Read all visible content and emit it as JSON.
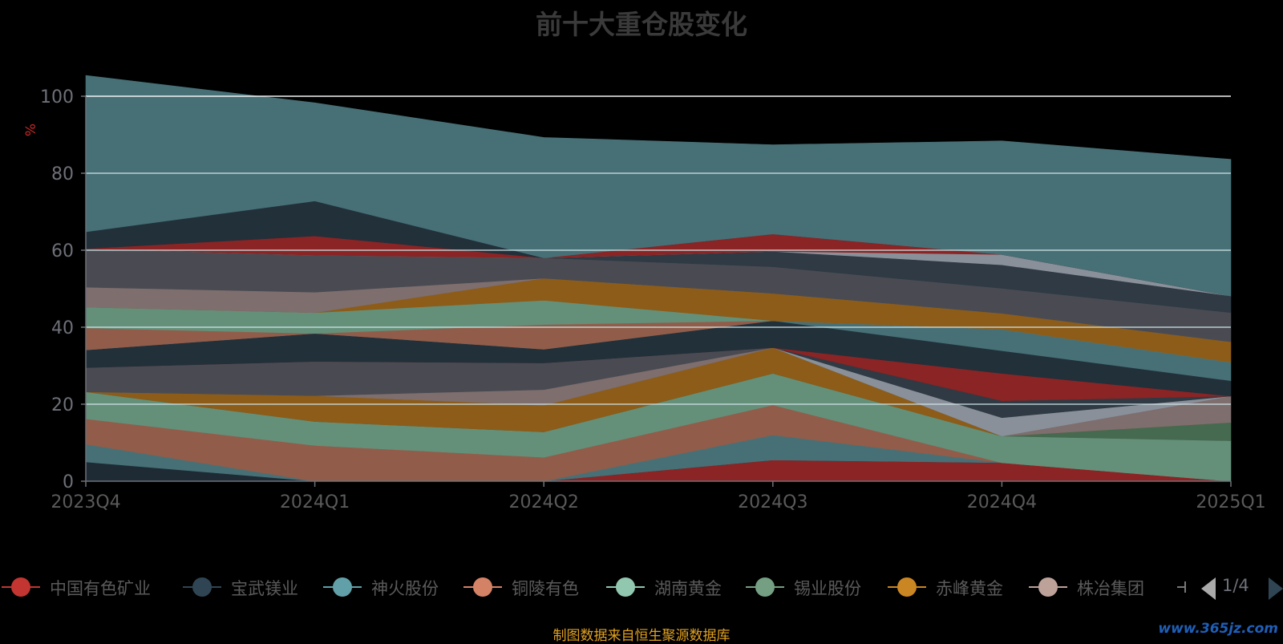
{
  "title": "前十大重仓股变化",
  "source_text": "制图数据来自恒生聚源数据库",
  "watermark": "www.365jz.com",
  "pager": {
    "label": "1/4"
  },
  "chart_data": {
    "type": "area",
    "stacked": true,
    "categories": [
      "2023Q4",
      "2024Q1",
      "2024Q2",
      "2024Q3",
      "2024Q4",
      "2025Q1"
    ],
    "ylabel": "%",
    "ylim": [
      0,
      100
    ],
    "yticks": [
      0,
      20,
      40,
      60,
      80,
      100
    ],
    "grid": true,
    "legend_position": "bottom",
    "series": [
      {
        "name": "中国有色矿业",
        "legend": true,
        "color": "#8b2424",
        "values": [
          0,
          0,
          0,
          5.5,
          4.8,
          0
        ]
      },
      {
        "name": "宝武镁业",
        "legend": true,
        "color": "#1e2b35",
        "values": [
          5,
          0,
          0,
          0,
          0,
          0
        ]
      },
      {
        "name": "神火股份",
        "legend": true,
        "color": "#477076",
        "values": [
          4.6,
          0,
          0,
          6.5,
          0,
          0
        ]
      },
      {
        "name": "铜陵有色",
        "legend": true,
        "color": "#915d4a",
        "values": [
          6.6,
          9.3,
          6.2,
          7.8,
          0,
          0
        ]
      },
      {
        "name": "湖南黄金",
        "legend": true,
        "color": "#64907a",
        "values": [
          7,
          6.2,
          6.6,
          8.2,
          6.9,
          10.5
        ]
      },
      {
        "name": "锡业股份",
        "legend": true,
        "color": "#466a50",
        "values": [
          0,
          0,
          0,
          0,
          0,
          4.8
        ]
      },
      {
        "name": "赤峰黄金",
        "legend": true,
        "color": "#8d5c18",
        "values": [
          0,
          6.7,
          6.9,
          6.7,
          0,
          0
        ]
      },
      {
        "name": "株冶集团",
        "legend": true,
        "color": "#7e6e6e",
        "values": [
          0,
          0,
          4.1,
          0,
          0,
          6.8
        ]
      },
      {
        "name": "",
        "legend": false,
        "color": "#4a4b52",
        "values": [
          6.3,
          8.9,
          6.9,
          0,
          0,
          0
        ]
      },
      {
        "name": "",
        "legend": false,
        "color": "#8a9099",
        "values": [
          0,
          0,
          0,
          0,
          4.8,
          0
        ]
      },
      {
        "name": "",
        "legend": false,
        "color": "#2f3a44",
        "values": [
          0,
          0,
          0,
          0,
          4.4,
          0
        ]
      },
      {
        "name": "",
        "legend": false,
        "color": "#8b2424",
        "values": [
          0,
          0,
          0,
          0,
          7.1,
          0
        ]
      },
      {
        "name": "",
        "legend": false,
        "color": "#22303a",
        "values": [
          4.6,
          7.3,
          3.6,
          7,
          5.9,
          4
        ]
      },
      {
        "name": "",
        "legend": false,
        "color": "#477076",
        "values": [
          0,
          0,
          0,
          0,
          5.6,
          4.8
        ]
      },
      {
        "name": "",
        "legend": false,
        "color": "#915d4a",
        "values": [
          5.7,
          0,
          6.4,
          0,
          0,
          0
        ]
      },
      {
        "name": "",
        "legend": false,
        "color": "#64907a",
        "values": [
          5.4,
          5.4,
          6.3,
          0,
          0,
          0
        ]
      },
      {
        "name": "",
        "legend": false,
        "color": "#8d5c18",
        "values": [
          0,
          0,
          5.7,
          7.1,
          4.1,
          5.3
        ]
      },
      {
        "name": "",
        "legend": false,
        "color": "#7e6e6e",
        "values": [
          5.2,
          5.3,
          0,
          0,
          0,
          0
        ]
      },
      {
        "name": "",
        "legend": false,
        "color": "#4a4b52",
        "values": [
          10,
          9.6,
          5.3,
          6.9,
          6.5,
          7.6
        ]
      },
      {
        "name": "",
        "legend": false,
        "color": "#2f3a44",
        "values": [
          0,
          0,
          0,
          4,
          6.1,
          4.3
        ]
      },
      {
        "name": "",
        "legend": false,
        "color": "#8a9099",
        "values": [
          0,
          0,
          0,
          0,
          2.7,
          0
        ]
      },
      {
        "name": "",
        "legend": false,
        "color": "#8b2424",
        "values": [
          0,
          5,
          0,
          4.5,
          0,
          0
        ]
      },
      {
        "name": "",
        "legend": false,
        "color": "#22303a",
        "values": [
          4.4,
          9.1,
          0,
          0,
          0,
          0
        ]
      },
      {
        "name": "",
        "legend": false,
        "color": "#477076",
        "values": [
          40.6,
          25.5,
          31.3,
          23.2,
          29.5,
          35.5
        ]
      }
    ]
  }
}
